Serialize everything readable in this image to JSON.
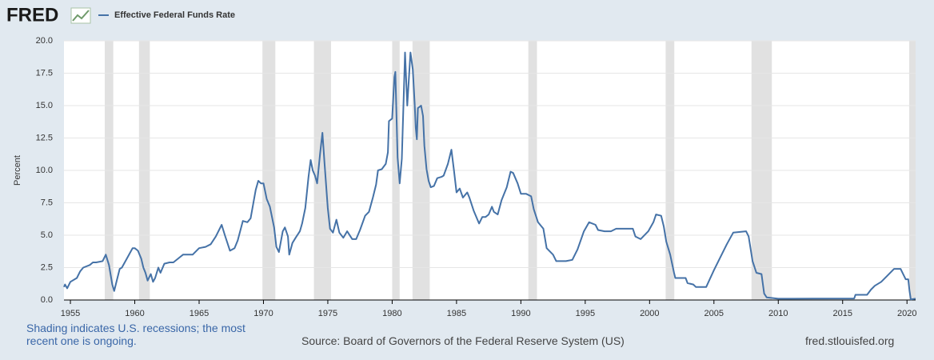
{
  "logo": "FRED",
  "chart_data": {
    "type": "line",
    "ylabel": "Percent",
    "xlim": [
      1954.5,
      2020.67
    ],
    "xticks": [
      1955,
      1960,
      1965,
      1970,
      1975,
      1980,
      1985,
      1990,
      1995,
      2000,
      2005,
      2010,
      2015,
      2020
    ],
    "ylim": [
      0,
      20
    ],
    "yticks": [
      {
        "value": 0,
        "label": "0.0"
      },
      2.5,
      {
        "value": 5,
        "label": "5.0"
      },
      7.5,
      {
        "value": 10,
        "label": "10.0"
      },
      12.5,
      {
        "value": 15,
        "label": "15.0"
      },
      17.5,
      {
        "value": 20,
        "label": "20.0"
      }
    ],
    "grid": true,
    "legend": "top-left",
    "recession_color": "#e1e1e1",
    "recessions": [
      [
        1957.67,
        1958.33
      ],
      [
        1960.33,
        1961.17
      ],
      [
        1969.92,
        1970.92
      ],
      [
        1973.92,
        1975.25
      ],
      [
        1980.0,
        1980.58
      ],
      [
        1981.58,
        1982.92
      ],
      [
        1990.58,
        1991.25
      ],
      [
        2001.25,
        2001.92
      ],
      [
        2007.92,
        2009.5
      ],
      [
        2020.17,
        2020.67
      ]
    ],
    "series": [
      {
        "name": "Effective Federal Funds Rate",
        "color": "#4572a7",
        "x": [
          1954.5,
          1954.58,
          1954.75,
          1955.0,
          1955.5,
          1955.75,
          1956.0,
          1956.5,
          1956.75,
          1957.0,
          1957.5,
          1957.75,
          1958.0,
          1958.25,
          1958.4,
          1958.6,
          1958.83,
          1959.0,
          1959.5,
          1959.83,
          1960.0,
          1960.25,
          1960.5,
          1960.67,
          1960.83,
          1961.0,
          1961.25,
          1961.42,
          1961.58,
          1961.83,
          1962.0,
          1962.3,
          1962.7,
          1963.0,
          1963.5,
          1963.75,
          1964.0,
          1964.5,
          1965.0,
          1965.5,
          1965.9,
          1966.3,
          1966.75,
          1967.0,
          1967.4,
          1967.75,
          1968.0,
          1968.4,
          1968.75,
          1969.0,
          1969.4,
          1969.6,
          1969.8,
          1970.0,
          1970.25,
          1970.5,
          1970.83,
          1971.0,
          1971.2,
          1971.5,
          1971.67,
          1971.9,
          1972.0,
          1972.25,
          1972.5,
          1972.83,
          1973.0,
          1973.25,
          1973.5,
          1973.67,
          1973.83,
          1974.0,
          1974.17,
          1974.4,
          1974.58,
          1974.75,
          1975.0,
          1975.17,
          1975.4,
          1975.67,
          1975.9,
          1976.2,
          1976.5,
          1976.9,
          1977.2,
          1977.5,
          1977.9,
          1978.2,
          1978.5,
          1978.75,
          1978.9,
          1979.2,
          1979.5,
          1979.67,
          1979.75,
          1980.0,
          1980.17,
          1980.25,
          1980.42,
          1980.58,
          1980.75,
          1980.9,
          1981.0,
          1981.17,
          1981.42,
          1981.6,
          1981.75,
          1981.83,
          1981.92,
          1982.0,
          1982.25,
          1982.4,
          1982.5,
          1982.67,
          1982.83,
          1983.0,
          1983.25,
          1983.5,
          1983.83,
          1984.0,
          1984.33,
          1984.6,
          1984.8,
          1985.0,
          1985.25,
          1985.5,
          1985.83,
          1986.0,
          1986.33,
          1986.75,
          1987.0,
          1987.25,
          1987.5,
          1987.75,
          1987.9,
          1988.2,
          1988.5,
          1988.9,
          1989.2,
          1989.4,
          1989.75,
          1990.0,
          1990.4,
          1990.8,
          1991.0,
          1991.33,
          1991.75,
          1992.0,
          1992.5,
          1992.75,
          1993.5,
          1994.0,
          1994.4,
          1994.9,
          1995.3,
          1995.8,
          1996.0,
          1996.5,
          1997.0,
          1997.4,
          1998.0,
          1998.7,
          1998.9,
          1999.3,
          1999.9,
          2000.3,
          2000.5,
          2000.9,
          2001.1,
          2001.3,
          2001.6,
          2001.9,
          2002.0,
          2002.8,
          2002.95,
          2003.4,
          2003.6,
          2004.4,
          2005.0,
          2006.0,
          2006.5,
          2007.5,
          2007.7,
          2008.0,
          2008.3,
          2008.7,
          2008.9,
          2009.1,
          2010.0,
          2011.0,
          2015.9,
          2016.0,
          2016.9,
          2017.2,
          2017.5,
          2018.0,
          2018.5,
          2018.9,
          2019.0,
          2019.5,
          2019.7,
          2019.9,
          2020.1,
          2020.2,
          2020.3,
          2020.67
        ],
        "values": [
          1.0,
          1.2,
          0.9,
          1.4,
          1.7,
          2.2,
          2.5,
          2.7,
          2.9,
          2.9,
          3.0,
          3.5,
          2.7,
          1.2,
          0.7,
          1.5,
          2.4,
          2.5,
          3.4,
          4.0,
          4.0,
          3.8,
          3.2,
          2.5,
          2.1,
          1.5,
          2.0,
          1.4,
          1.7,
          2.5,
          2.1,
          2.8,
          2.9,
          2.9,
          3.3,
          3.5,
          3.5,
          3.5,
          4.0,
          4.1,
          4.3,
          4.9,
          5.8,
          5.0,
          3.8,
          4.0,
          4.6,
          6.1,
          6.0,
          6.3,
          8.5,
          9.2,
          9.0,
          9.0,
          7.8,
          7.2,
          5.6,
          4.1,
          3.7,
          5.3,
          5.6,
          4.9,
          3.5,
          4.4,
          4.8,
          5.3,
          5.9,
          7.1,
          9.5,
          10.8,
          10.0,
          9.6,
          9.0,
          11.3,
          12.9,
          10.5,
          7.1,
          5.5,
          5.2,
          6.2,
          5.2,
          4.8,
          5.3,
          4.7,
          4.7,
          5.4,
          6.5,
          6.8,
          7.9,
          8.9,
          10.0,
          10.1,
          10.5,
          11.4,
          13.8,
          14.0,
          17.2,
          17.6,
          11.0,
          9.0,
          10.9,
          15.8,
          19.1,
          15.0,
          19.1,
          17.8,
          15.1,
          13.3,
          12.4,
          14.8,
          15.0,
          14.2,
          11.9,
          10.1,
          9.2,
          8.7,
          8.8,
          9.4,
          9.5,
          9.6,
          10.5,
          11.6,
          10.0,
          8.3,
          8.6,
          7.9,
          8.3,
          7.9,
          6.9,
          5.9,
          6.4,
          6.4,
          6.6,
          7.2,
          6.8,
          6.6,
          7.7,
          8.7,
          9.9,
          9.8,
          9.0,
          8.2,
          8.2,
          8.0,
          7.0,
          6.0,
          5.5,
          4.0,
          3.5,
          3.0,
          3.0,
          3.1,
          3.9,
          5.3,
          6.0,
          5.8,
          5.4,
          5.3,
          5.3,
          5.5,
          5.5,
          5.5,
          4.9,
          4.7,
          5.3,
          6.0,
          6.6,
          6.5,
          5.7,
          4.5,
          3.5,
          2.1,
          1.7,
          1.7,
          1.3,
          1.2,
          1.0,
          1.0,
          2.3,
          4.3,
          5.2,
          5.3,
          4.9,
          3.0,
          2.1,
          2.0,
          0.5,
          0.2,
          0.1,
          0.1,
          0.12,
          0.4,
          0.4,
          0.8,
          1.1,
          1.4,
          1.9,
          2.3,
          2.4,
          2.4,
          2.0,
          1.6,
          1.6,
          0.7,
          0.05,
          0.1
        ]
      }
    ]
  },
  "footer": {
    "note": "Shading indicates U.S. recessions; the most recent one is ongoing.",
    "source": "Source: Board of Governors of the Federal Reserve System (US)",
    "site": "fred.stlouisfed.org"
  }
}
